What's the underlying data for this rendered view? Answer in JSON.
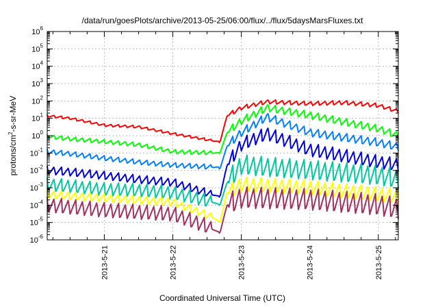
{
  "chart_data": {
    "type": "line",
    "title": "/data/run/goesPlots/archive/2013-05-25/06:00/flux/../flux/5daysMarsFluxes.txt",
    "xlabel": "Coordinated Universal Time (UTC)",
    "ylabel_parts": [
      "protons/cm",
      "2",
      "-s-sr-MeV"
    ],
    "y_scale": "log",
    "ylim": [
      1e-06,
      1000000.0
    ],
    "y_ticks": [
      {
        "base": "10",
        "exp": "-6",
        "value": 1e-06
      },
      {
        "base": "10",
        "exp": "-5",
        "value": 1e-05
      },
      {
        "base": "10",
        "exp": "-4",
        "value": 0.0001
      },
      {
        "base": "10",
        "exp": "-3",
        "value": 0.001
      },
      {
        "base": "10",
        "exp": "-2",
        "value": 0.01
      },
      {
        "base": "10",
        "exp": "-1",
        "value": 0.1
      },
      {
        "base": "10",
        "exp": "0",
        "value": 1
      },
      {
        "base": "10",
        "exp": "1",
        "value": 10
      },
      {
        "base": "10",
        "exp": "2",
        "value": 100
      },
      {
        "base": "10",
        "exp": "3",
        "value": 1000
      },
      {
        "base": "10",
        "exp": "4",
        "value": 10000
      },
      {
        "base": "10",
        "exp": "5",
        "value": 100000
      },
      {
        "base": "10",
        "exp": "6",
        "value": 1000000
      }
    ],
    "xlim": [
      "2013-05-20T04:00",
      "2013-05-25T07:00"
    ],
    "x_ticks": [
      {
        "label": "2013-5-21",
        "value": "2013-05-21T00:00"
      },
      {
        "label": "2013-5-22",
        "value": "2013-05-22T00:00"
      },
      {
        "label": "2013-5-23",
        "value": "2013-05-23T00:00"
      },
      {
        "label": "2013-5-24",
        "value": "2013-05-24T00:00"
      },
      {
        "label": "2013-5-25",
        "value": "2013-05-25T00:00"
      }
    ],
    "grid": true,
    "event_time": "2013-05-22T16:30",
    "cycle_hours": 2.5,
    "series": [
      {
        "color": "#ff0000",
        "points": [
          [
            "2013-05-20T04:00",
            14
          ],
          [
            "2013-05-20T12:00",
            10
          ],
          [
            "2013-05-21T00:00",
            4
          ],
          [
            "2013-05-21T12:00",
            3.2
          ],
          [
            "2013-05-22T00:00",
            1.3
          ],
          [
            "2013-05-22T16:00",
            0.45
          ],
          [
            "2013-05-22T16:30",
            0.42
          ],
          [
            "2013-05-22T19:00",
            14
          ],
          [
            "2013-05-23T00:00",
            40
          ],
          [
            "2013-05-23T09:00",
            90
          ],
          [
            "2013-05-24T00:00",
            70
          ],
          [
            "2013-05-24T12:00",
            80
          ],
          [
            "2013-05-25T00:00",
            55
          ],
          [
            "2013-05-25T07:00",
            25
          ]
        ],
        "sawtooth": [
          0.0,
          0.15,
          0.0,
          0.25
        ]
      },
      {
        "color": "#00ff00",
        "points": [
          [
            "2013-05-20T04:00",
            0.9
          ],
          [
            "2013-05-20T12:00",
            0.65
          ],
          [
            "2013-05-21T00:00",
            0.45
          ],
          [
            "2013-05-21T12:00",
            0.3
          ],
          [
            "2013-05-22T00:00",
            0.12
          ],
          [
            "2013-05-22T16:00",
            0.1
          ],
          [
            "2013-05-22T16:30",
            0.1
          ],
          [
            "2013-05-22T19:00",
            1.5
          ],
          [
            "2013-05-23T00:00",
            7
          ],
          [
            "2013-05-23T09:00",
            40
          ],
          [
            "2013-05-24T00:00",
            15
          ],
          [
            "2013-05-25T00:00",
            2.5
          ],
          [
            "2013-05-25T07:00",
            1
          ]
        ],
        "sawtooth": [
          0.0,
          0.25,
          0.0,
          0.45
        ]
      },
      {
        "color": "#0080ff",
        "points": [
          [
            "2013-05-20T04:00",
            0.12
          ],
          [
            "2013-05-20T12:00",
            0.09
          ],
          [
            "2013-05-21T00:00",
            0.05
          ],
          [
            "2013-05-21T12:00",
            0.03
          ],
          [
            "2013-05-22T00:00",
            0.02
          ],
          [
            "2013-05-22T16:00",
            0.015
          ],
          [
            "2013-05-22T16:30",
            0.012
          ],
          [
            "2013-05-22T19:00",
            0.25
          ],
          [
            "2013-05-23T00:00",
            1.5
          ],
          [
            "2013-05-23T09:00",
            12
          ],
          [
            "2013-05-24T00:00",
            1.5
          ],
          [
            "2013-05-25T00:00",
            0.4
          ],
          [
            "2013-05-25T07:00",
            0.22
          ]
        ],
        "sawtooth": [
          0.0,
          0.3,
          0.0,
          0.5
        ]
      },
      {
        "color": "#0000dd",
        "points": [
          [
            "2013-05-20T04:00",
            0.01
          ],
          [
            "2013-05-20T12:00",
            0.008
          ],
          [
            "2013-05-21T00:00",
            0.005
          ],
          [
            "2013-05-21T12:00",
            0.003
          ],
          [
            "2013-05-22T00:00",
            0.002
          ],
          [
            "2013-05-22T14:00",
            0.0004
          ],
          [
            "2013-05-22T16:30",
            0.0003
          ],
          [
            "2013-05-22T19:00",
            0.02
          ],
          [
            "2013-05-23T00:00",
            0.3
          ],
          [
            "2013-05-23T09:00",
            1.3
          ],
          [
            "2013-05-24T00:00",
            0.15
          ],
          [
            "2013-05-25T00:00",
            0.03
          ],
          [
            "2013-05-25T07:00",
            0.02
          ]
        ],
        "sawtooth": [
          0.0,
          0.5,
          0.0,
          0.8
        ]
      },
      {
        "color": "#00c8a0",
        "points": [
          [
            "2013-05-20T04:00",
            0.0015
          ],
          [
            "2013-05-20T12:00",
            0.0012
          ],
          [
            "2013-05-21T00:00",
            0.0008
          ],
          [
            "2013-05-21T12:00",
            0.0007
          ],
          [
            "2013-05-22T00:00",
            0.0005
          ],
          [
            "2013-05-22T14:00",
            0.00015
          ],
          [
            "2013-05-22T16:30",
            0.0001
          ],
          [
            "2013-05-22T19:00",
            0.002
          ],
          [
            "2013-05-23T00:00",
            0.02
          ],
          [
            "2013-05-23T09:00",
            0.015
          ],
          [
            "2013-05-24T00:00",
            0.01
          ],
          [
            "2013-05-25T00:00",
            0.005
          ],
          [
            "2013-05-25T07:00",
            0.003
          ]
        ],
        "sawtooth": [
          0.0,
          0.8,
          0.0,
          1.2
        ]
      },
      {
        "color": "#ffff00",
        "points": [
          [
            "2013-05-20T04:00",
            0.0004
          ],
          [
            "2013-05-21T00:00",
            0.00025
          ],
          [
            "2013-05-22T00:00",
            0.00015
          ],
          [
            "2013-05-22T14:00",
            2e-05
          ],
          [
            "2013-05-22T16:30",
            1e-05
          ],
          [
            "2013-05-22T19:00",
            0.0005
          ],
          [
            "2013-05-23T00:00",
            0.0015
          ],
          [
            "2013-05-24T00:00",
            0.001
          ],
          [
            "2013-05-25T00:00",
            0.0004
          ],
          [
            "2013-05-25T07:00",
            0.0003
          ]
        ],
        "sawtooth": [
          0.0,
          0.5,
          0.0,
          0.9
        ]
      },
      {
        "color": "#a03060",
        "points": [
          [
            "2013-05-20T04:00",
            0.0001
          ],
          [
            "2013-05-21T00:00",
            5e-05
          ],
          [
            "2013-05-22T00:00",
            3e-05
          ],
          [
            "2013-05-22T12:00",
            6e-06
          ],
          [
            "2013-05-22T16:30",
            2.5e-06
          ],
          [
            "2013-05-22T19:00",
            0.0001
          ],
          [
            "2013-05-23T00:00",
            0.00025
          ],
          [
            "2013-05-24T00:00",
            0.0002
          ],
          [
            "2013-05-25T00:00",
            0.0001
          ],
          [
            "2013-05-25T07:00",
            6e-05
          ]
        ],
        "sawtooth": [
          0.0,
          0.9,
          0.0,
          1.3
        ]
      }
    ]
  }
}
